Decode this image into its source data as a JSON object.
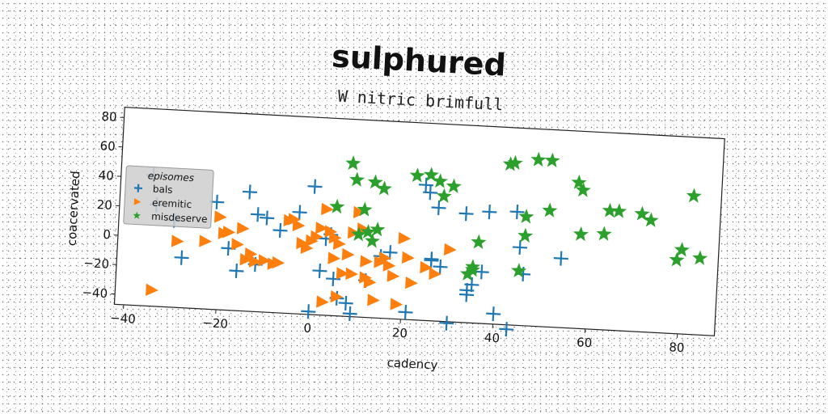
{
  "chart_data": {
    "type": "scatter",
    "title": "sulphured",
    "subtitle": "W nitric brimfull",
    "xlabel": "cadency",
    "ylabel": "coacervated",
    "xlim": [
      -42,
      88
    ],
    "ylim": [
      -47,
      87
    ],
    "xticks": [
      -40,
      -20,
      0,
      20,
      40,
      60,
      80
    ],
    "yticks": [
      -40,
      -20,
      0,
      20,
      40,
      60,
      80
    ],
    "grid": false,
    "legend": {
      "title": "episomes",
      "placement": "center-left"
    },
    "series": [
      {
        "name": "bals",
        "marker": "plus",
        "color": "#1f77b4",
        "points": [
          [
            -35,
            42
          ],
          [
            -34,
            22
          ],
          [
            -30,
            12
          ],
          [
            -28,
            -13
          ],
          [
            -21,
            26
          ],
          [
            -14,
            34
          ],
          [
            -12,
            19
          ],
          [
            -10,
            17
          ],
          [
            -7,
            9
          ],
          [
            -3,
            22
          ],
          [
            0,
            40
          ],
          [
            2,
            -17
          ],
          [
            3,
            5
          ],
          [
            5,
            -22
          ],
          [
            6,
            -35
          ],
          [
            8,
            -38
          ],
          [
            9,
            -45
          ],
          [
            12,
            -22
          ],
          [
            15,
            -5
          ],
          [
            17,
            -2
          ],
          [
            21,
            -42
          ],
          [
            24,
            45
          ],
          [
            25,
            40
          ],
          [
            26,
            -5
          ],
          [
            26,
            -6
          ],
          [
            27,
            30
          ],
          [
            28,
            -10
          ],
          [
            30,
            -48
          ],
          [
            33,
            27
          ],
          [
            34,
            -25
          ],
          [
            34,
            -28
          ],
          [
            35,
            -21
          ],
          [
            37,
            -12
          ],
          [
            38,
            29
          ],
          [
            40,
            -40
          ],
          [
            43,
            -50
          ],
          [
            44,
            30
          ],
          [
            45,
            6
          ],
          [
            46,
            -12
          ],
          [
            54,
            0
          ],
          [
            -16,
            -20
          ],
          [
            -12,
            -15
          ],
          [
            0,
            -45
          ],
          [
            4,
            8
          ],
          [
            -18,
            -5
          ]
        ]
      },
      {
        "name": "eremitic",
        "marker": "triangle-right",
        "color": "#ff7f0e",
        "points": [
          [
            -34,
            -36
          ],
          [
            -29,
            -2
          ],
          [
            -23,
            -1
          ],
          [
            -20,
            16
          ],
          [
            -19,
            5
          ],
          [
            -18,
            6
          ],
          [
            -16,
            -2
          ],
          [
            -14,
            -12
          ],
          [
            -13,
            -8
          ],
          [
            -12,
            -13
          ],
          [
            -10,
            -12
          ],
          [
            -8,
            -14
          ],
          [
            -7,
            -13
          ],
          [
            -5,
            16
          ],
          [
            -4,
            17
          ],
          [
            -3,
            13
          ],
          [
            -2,
            1
          ],
          [
            -1,
            -2
          ],
          [
            0,
            3
          ],
          [
            1,
            6
          ],
          [
            2,
            12
          ],
          [
            3,
            25
          ],
          [
            3,
            -38
          ],
          [
            4,
            10
          ],
          [
            5,
            6
          ],
          [
            5,
            -8
          ],
          [
            6,
            2
          ],
          [
            6,
            -34
          ],
          [
            7,
            -18
          ],
          [
            8,
            -5
          ],
          [
            9,
            -18
          ],
          [
            10,
            24
          ],
          [
            11,
            13
          ],
          [
            12,
            -9
          ],
          [
            12,
            -20
          ],
          [
            13,
            -23
          ],
          [
            14,
            -35
          ],
          [
            15,
            -9
          ],
          [
            16,
            -6
          ],
          [
            17,
            -11
          ],
          [
            18,
            -18
          ],
          [
            19,
            -37
          ],
          [
            20,
            8
          ],
          [
            21,
            -5
          ],
          [
            22,
            -22
          ],
          [
            25,
            -11
          ],
          [
            27,
            -15
          ],
          [
            30,
            2
          ],
          [
            -15,
            9
          ],
          [
            9,
            10
          ]
        ]
      },
      {
        "name": "misdeserve",
        "marker": "star",
        "color": "#2ca02c",
        "points": [
          [
            5,
            27
          ],
          [
            8,
            57
          ],
          [
            9,
            46
          ],
          [
            10,
            9
          ],
          [
            11,
            26
          ],
          [
            12,
            11
          ],
          [
            13,
            5
          ],
          [
            13,
            45
          ],
          [
            14,
            13
          ],
          [
            15,
            41
          ],
          [
            22,
            51
          ],
          [
            25,
            52
          ],
          [
            27,
            48
          ],
          [
            28,
            38
          ],
          [
            30,
            45
          ],
          [
            34,
            -14
          ],
          [
            35,
            -9
          ],
          [
            35,
            -11
          ],
          [
            36,
            8
          ],
          [
            42,
            62
          ],
          [
            43,
            63
          ],
          [
            45,
            -10
          ],
          [
            46,
            27
          ],
          [
            46,
            14
          ],
          [
            48,
            66
          ],
          [
            51,
            66
          ],
          [
            51,
            32
          ],
          [
            57,
            52
          ],
          [
            58,
            47
          ],
          [
            58,
            17
          ],
          [
            63,
            18
          ],
          [
            64,
            34
          ],
          [
            66,
            34
          ],
          [
            71,
            33
          ],
          [
            73,
            29
          ],
          [
            79,
            3
          ],
          [
            80,
            10
          ],
          [
            82,
            47
          ],
          [
            84,
            5
          ]
        ]
      }
    ]
  }
}
